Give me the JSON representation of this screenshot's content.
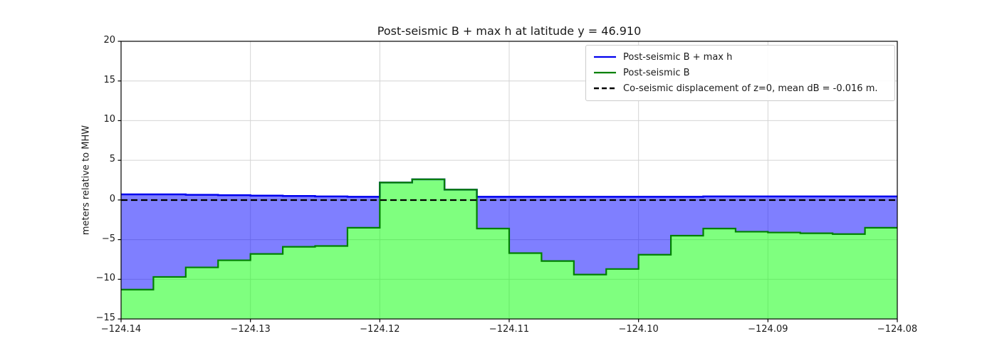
{
  "chart_data": {
    "type": "area",
    "title": "Post-seismic B + max h at latitude y = 46.910",
    "xlabel": "",
    "ylabel": "meters relative to MHW",
    "xlim": [
      -124.14,
      -124.08
    ],
    "ylim": [
      -15,
      20
    ],
    "xticks": [
      -124.14,
      -124.13,
      -124.12,
      -124.11,
      -124.1,
      -124.09,
      -124.08
    ],
    "xtick_labels": [
      "−124.14",
      "−124.13",
      "−124.12",
      "−124.11",
      "−124.10",
      "−124.09",
      "−124.08"
    ],
    "yticks": [
      20,
      15,
      10,
      5,
      0,
      -5,
      -10,
      -15
    ],
    "ytick_labels": [
      "20",
      "15",
      "10",
      "5",
      "0",
      "−5",
      "−10",
      "−15"
    ],
    "grid": true,
    "x_edges": [
      -124.14,
      -124.1375,
      -124.135,
      -124.1325,
      -124.13,
      -124.1275,
      -124.125,
      -124.1225,
      -124.12,
      -124.1175,
      -124.115,
      -124.1125,
      -124.11,
      -124.1075,
      -124.105,
      -124.1025,
      -124.1,
      -124.0975,
      -124.095,
      -124.0925,
      -124.09,
      -124.0875,
      -124.085,
      -124.0825,
      -124.08
    ],
    "series": [
      {
        "name": "Post-seismic B + max h",
        "type": "step",
        "color": "#0000ee",
        "fill": "rgba(0,0,255,0.5)",
        "values": [
          0.7,
          0.7,
          0.65,
          0.6,
          0.55,
          0.5,
          0.45,
          0.4,
          2.2,
          2.6,
          1.3,
          0.4,
          0.4,
          0.4,
          0.4,
          0.4,
          0.4,
          0.4,
          0.45,
          0.45,
          0.45,
          0.45,
          0.45,
          0.45
        ]
      },
      {
        "name": "Post-seismic B",
        "type": "step",
        "color": "#008000",
        "fill": "rgba(0,255,0,0.5)",
        "values": [
          -11.3,
          -9.7,
          -8.5,
          -7.6,
          -6.8,
          -5.9,
          -5.8,
          -3.5,
          2.2,
          2.6,
          1.3,
          -3.6,
          -6.7,
          -7.7,
          -9.4,
          -8.7,
          -6.9,
          -4.5,
          -3.6,
          -4.0,
          -4.1,
          -4.2,
          -4.3,
          -3.5
        ]
      },
      {
        "name": "Co-seismic displacement of z=0, mean dB = -0.016 m.",
        "type": "hline",
        "color": "#000000",
        "linestyle": "dashed",
        "value": -0.016
      }
    ],
    "legend": {
      "position": "upper right"
    }
  },
  "colors": {
    "grid": "#d4d4d4",
    "axis": "#000000",
    "text": "#1a1a1a",
    "background": "#ffffff"
  }
}
